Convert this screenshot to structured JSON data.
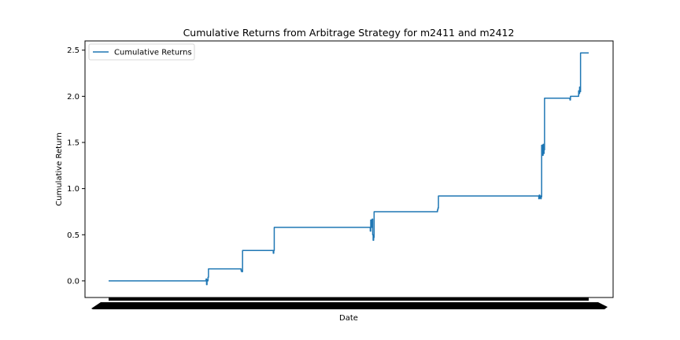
{
  "chart_data": {
    "type": "line",
    "title": "Cumulative Returns from Arbitrage Strategy for m2411 and m2412",
    "xlabel": "Date",
    "ylabel": "Cumulative Return",
    "ylim": [
      -0.18,
      2.6
    ],
    "xlim": [
      0,
      1.0
    ],
    "yticks": [
      0.0,
      0.5,
      1.0,
      1.5,
      2.0,
      2.5
    ],
    "ytick_labels": [
      "0.0",
      "0.5",
      "1.0",
      "1.5",
      "2.0",
      "2.5"
    ],
    "grid": false,
    "legend_position": "top-left",
    "series": [
      {
        "name": "Cumulative Returns",
        "color": "#1f77b4",
        "x": [
          0,
          0.202,
          0.203,
          0.204,
          0.205,
          0.206,
          0.207,
          0.208,
          0.209,
          0.275,
          0.276,
          0.277,
          0.278,
          0.279,
          0.28,
          0.342,
          0.343,
          0.344,
          0.345,
          0.346,
          0.544,
          0.545,
          0.546,
          0.547,
          0.548,
          0.549,
          0.55,
          0.551,
          0.552,
          0.553,
          0.554,
          0.684,
          0.685,
          0.686,
          0.687,
          0.688,
          0.895,
          0.896,
          0.897,
          0.898,
          0.899,
          0.9,
          0.901,
          0.902,
          0.903,
          0.904,
          0.905,
          0.906,
          0.907,
          0.908,
          0.909,
          0.91,
          0.911,
          0.912,
          0.96,
          0.961,
          0.962,
          0.978,
          0.979,
          0.98,
          0.981,
          0.982,
          0.983,
          0.984,
          1.0
        ],
        "y": [
          0.0,
          0.0,
          0.02,
          -0.04,
          0.01,
          0.0,
          0.04,
          0.13,
          0.13,
          0.13,
          0.11,
          0.1,
          0.1,
          0.33,
          0.33,
          0.33,
          0.3,
          0.33,
          0.58,
          0.58,
          0.58,
          0.54,
          0.66,
          0.58,
          0.62,
          0.67,
          0.5,
          0.44,
          0.47,
          0.75,
          0.75,
          0.75,
          0.77,
          0.79,
          0.92,
          0.92,
          0.92,
          0.89,
          0.93,
          0.9,
          0.92,
          0.89,
          0.91,
          1.47,
          1.4,
          1.36,
          1.48,
          1.38,
          1.42,
          1.98,
          1.98,
          1.98,
          1.98,
          1.98,
          1.98,
          1.96,
          2.0,
          2.0,
          2.06,
          2.03,
          2.1,
          2.05,
          2.47,
          2.47,
          2.47
        ]
      }
    ]
  }
}
